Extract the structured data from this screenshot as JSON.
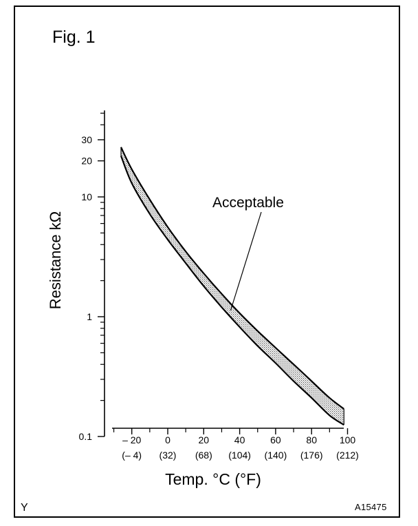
{
  "figure": {
    "title": "Fig. 1",
    "corner_left": "Y",
    "corner_right": "A15475"
  },
  "chart_data": {
    "type": "area",
    "title": "Fig. 1",
    "ylabel": "Resistance kΩ",
    "xlabel": "Temp. °C (°F)",
    "y_scale": "log",
    "ylim": [
      0.08,
      50
    ],
    "xlim": [
      -30,
      100
    ],
    "grid": false,
    "x_ticks": [
      {
        "value": -20,
        "label": "– 20",
        "sublabel": "(– 4)"
      },
      {
        "value": 0,
        "label": "0",
        "sublabel": "(32)"
      },
      {
        "value": 20,
        "label": "20",
        "sublabel": "(68)"
      },
      {
        "value": 40,
        "label": "40",
        "sublabel": "(104)"
      },
      {
        "value": 60,
        "label": "60",
        "sublabel": "(140)"
      },
      {
        "value": 80,
        "label": "80",
        "sublabel": "(176)"
      },
      {
        "value": 100,
        "label": "100",
        "sublabel": "(212)"
      }
    ],
    "y_ticks_labeled": [
      {
        "value": 0.1,
        "label": "0.1"
      },
      {
        "value": 1,
        "label": "1"
      },
      {
        "value": 10,
        "label": "10"
      },
      {
        "value": 20,
        "label": "20"
      },
      {
        "value": 30,
        "label": "30"
      }
    ],
    "y_ticks_minor": [
      0.2,
      0.3,
      0.4,
      0.5,
      0.6,
      0.7,
      0.8,
      0.9,
      2,
      3,
      4,
      5,
      6,
      7,
      8,
      9,
      40,
      50
    ],
    "x_ticks_minor": [
      -30,
      -10,
      10,
      30,
      50,
      70,
      90
    ],
    "series": [
      {
        "name": "Acceptable",
        "x": [
          -26,
          -20,
          -10,
          0,
          10,
          20,
          30,
          40,
          50,
          60,
          70,
          80,
          90,
          98
        ],
        "upper": [
          26,
          17,
          9.5,
          5.6,
          3.5,
          2.3,
          1.55,
          1.07,
          0.76,
          0.55,
          0.4,
          0.29,
          0.21,
          0.17
        ],
        "lower": [
          22,
          13,
          7.2,
          4.4,
          2.8,
          1.8,
          1.2,
          0.82,
          0.57,
          0.41,
          0.29,
          0.21,
          0.15,
          0.125
        ]
      }
    ],
    "annotations": [
      {
        "text": "Acceptable",
        "points_to_x": 35
      }
    ]
  }
}
